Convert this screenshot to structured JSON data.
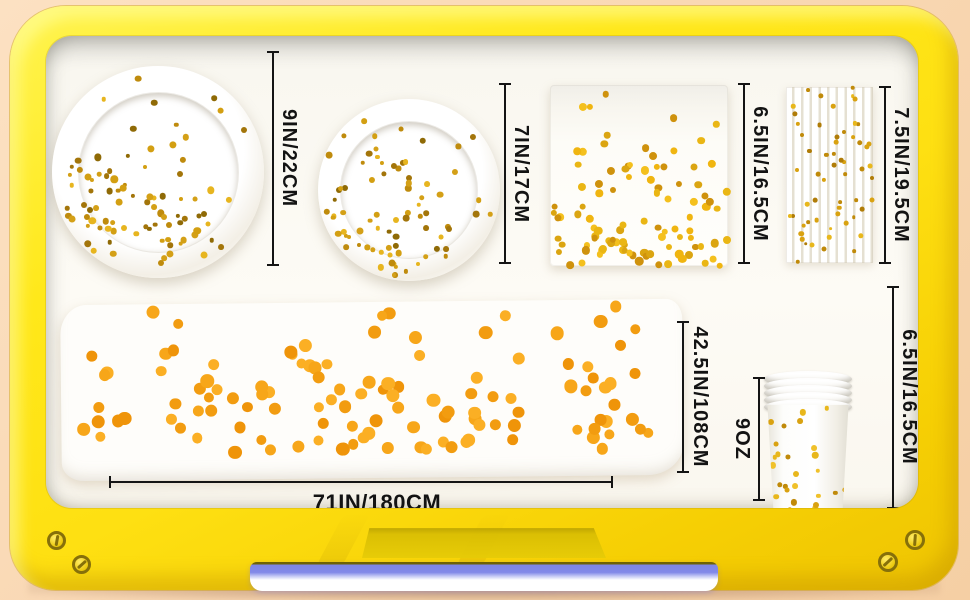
{
  "scene": {
    "description": "Gold dot party tableware set shown inside a yellow cartoon TV frame with dimension callouts",
    "background_color": "#f9d8b4",
    "frame_color": "#ffe51a",
    "screen_color": "#fdfbf5",
    "glow_bar_color": "#8289e8",
    "gold_foil_dot_color": "#d4a017",
    "orange_dot_color": "#f6a41b",
    "annotation_color": "#141414"
  },
  "items": {
    "plate_large": {
      "name": "large paper plate",
      "label": "9IN/22CM"
    },
    "plate_small": {
      "name": "small paper plate",
      "label": "7IN/17CM"
    },
    "napkin": {
      "name": "paper napkin",
      "label": "6.5IN/16.5CM"
    },
    "straws": {
      "name": "paper straws",
      "label": "7.5IN/19.5CM"
    },
    "tablecloth": {
      "name": "tablecloth",
      "width_label": "71IN/180CM",
      "height_label": "42.5IN/108CM"
    },
    "cups": {
      "name": "paper cup stack",
      "volume_label": "9OZ",
      "height_label": "6.5IN/16.5CM"
    }
  }
}
